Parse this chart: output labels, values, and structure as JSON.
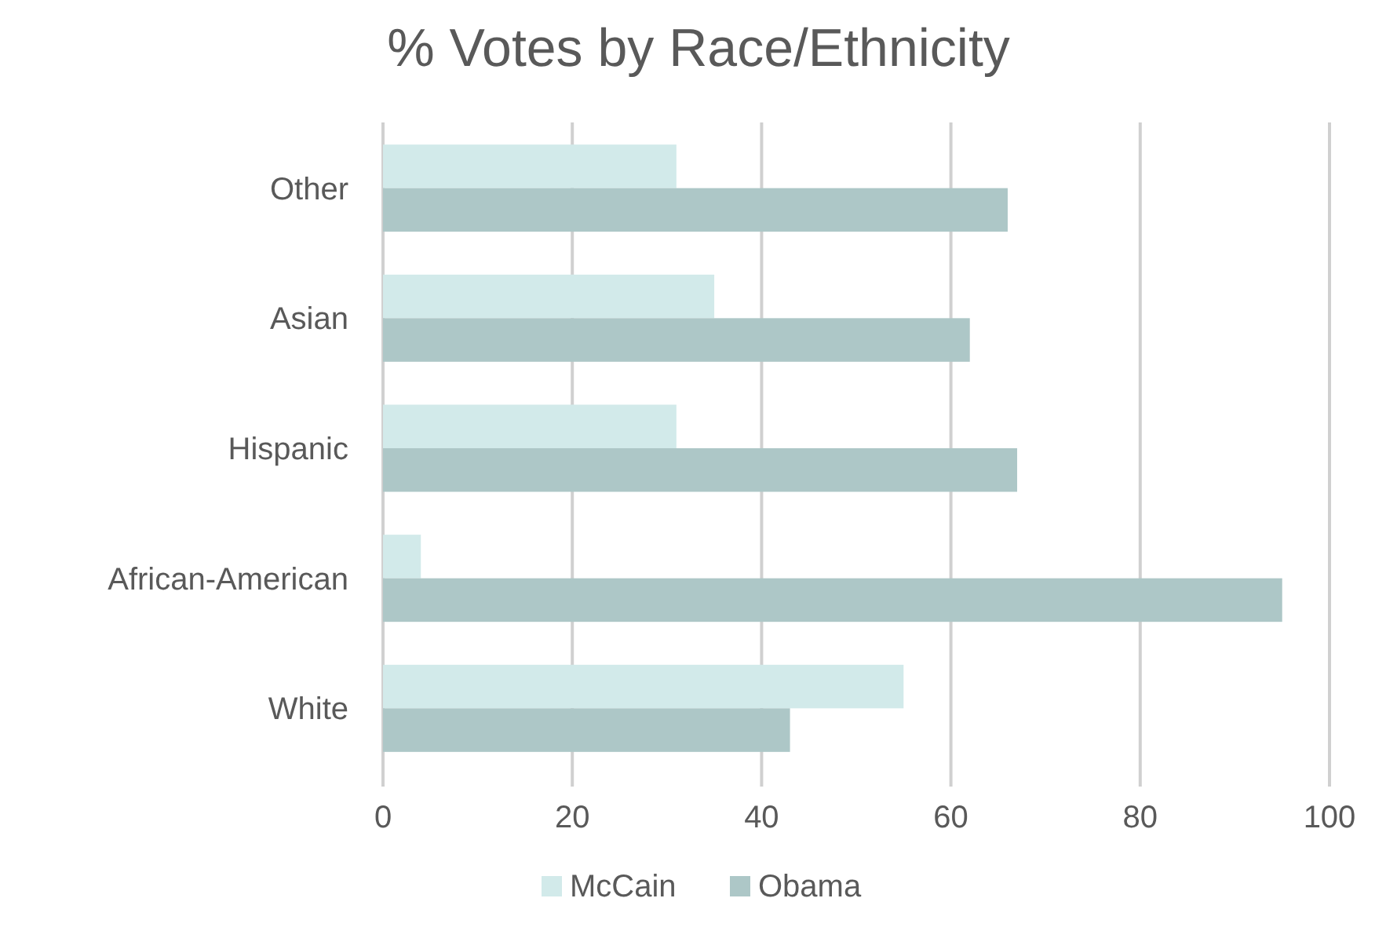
{
  "chart_data": {
    "type": "bar",
    "orientation": "horizontal",
    "title": "% Votes by Race/Ethnicity",
    "categories": [
      "Other",
      "Asian",
      "Hispanic",
      "African-American",
      "White"
    ],
    "series": [
      {
        "name": "McCain",
        "color": "#d2eaea",
        "values": [
          31,
          35,
          31,
          4,
          55
        ]
      },
      {
        "name": "Obama",
        "color": "#adc7c7",
        "values": [
          66,
          62,
          67,
          95,
          43
        ]
      }
    ],
    "xlim": [
      0,
      100
    ],
    "xticks": [
      0,
      20,
      40,
      60,
      80,
      100
    ],
    "grid": "x",
    "legend": "bottom"
  }
}
